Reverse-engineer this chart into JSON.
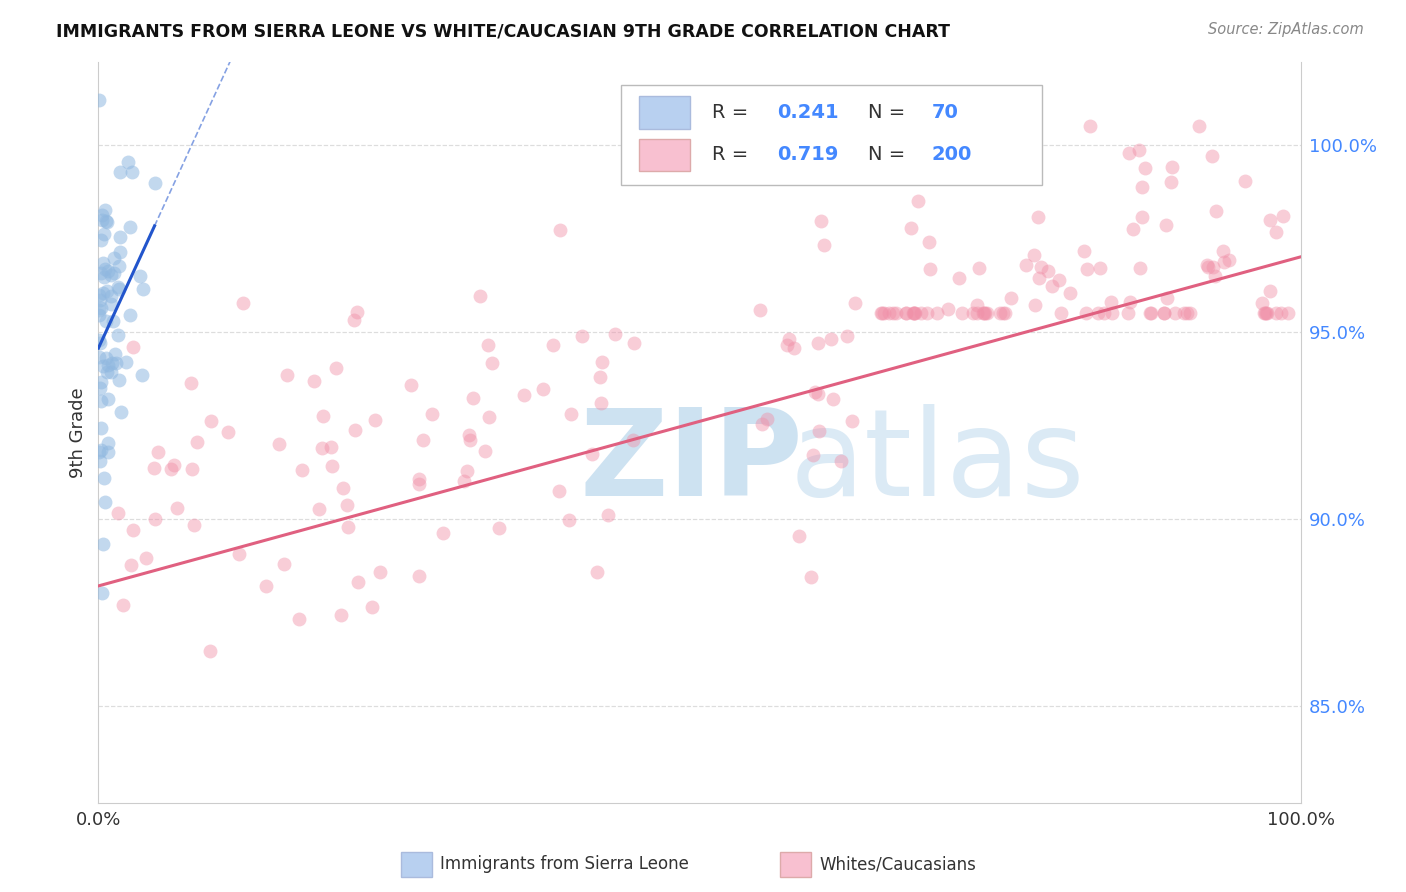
{
  "title": "IMMIGRANTS FROM SIERRA LEONE VS WHITE/CAUCASIAN 9TH GRADE CORRELATION CHART",
  "source": "Source: ZipAtlas.com",
  "ylabel": "9th Grade",
  "ytick_values": [
    0.85,
    0.9,
    0.95,
    1.0
  ],
  "ytick_labels": [
    "85.0%",
    "90.0%",
    "95.0%",
    "100.0%"
  ],
  "legend_label1": "Immigrants from Sierra Leone",
  "legend_label2": "Whites/Caucasians",
  "blue_R": 0.241,
  "blue_N": 70,
  "pink_R": 0.719,
  "pink_N": 200,
  "blue_scatter_color": "#90b8e0",
  "pink_scatter_color": "#f090a8",
  "blue_line_color": "#2255cc",
  "pink_line_color": "#e06080",
  "legend_blue_fill": "#b8d0f0",
  "legend_pink_fill": "#f8c0d0",
  "watermark_zip_color": "#c8dff0",
  "watermark_atlas_color": "#c8dff0",
  "background_color": "#ffffff",
  "xmin": 0.0,
  "xmax": 1.0,
  "ymin": 0.824,
  "ymax": 1.022,
  "title_color": "#111111",
  "source_color": "#888888",
  "grid_color": "#dddddd",
  "right_tick_color": "#4488ff"
}
